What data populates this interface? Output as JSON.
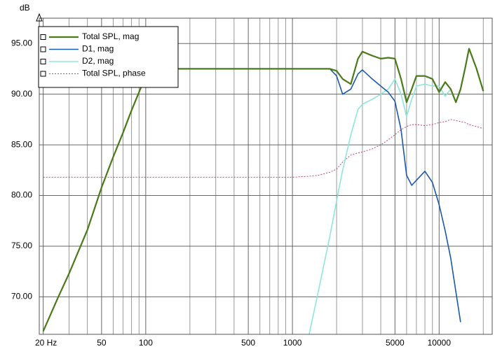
{
  "chart_data": {
    "type": "line",
    "y_label": "dB",
    "x": [
      20,
      25,
      30,
      40,
      50,
      60,
      70,
      80,
      90,
      100,
      150,
      200,
      500,
      1000,
      1300,
      1500,
      1800,
      2000,
      2200,
      2500,
      2800,
      3000,
      3500,
      4000,
      4500,
      5000,
      5500,
      6000,
      6500,
      7000,
      8000,
      9000,
      10000,
      11000,
      12000,
      13000,
      14000,
      15000,
      16000,
      18000,
      20000
    ],
    "series": [
      {
        "name": "Total SPL, mag",
        "color": "#4a7a1a",
        "width": 2.2,
        "dashed": false,
        "values": [
          66.6,
          69.8,
          72.3,
          76.6,
          80.8,
          83.8,
          86.2,
          88.4,
          90.2,
          91.8,
          92.5,
          92.5,
          92.5,
          92.5,
          92.5,
          92.5,
          92.5,
          92.3,
          91.5,
          91.0,
          93.5,
          94.2,
          93.8,
          93.5,
          93.6,
          93.5,
          91.5,
          89.2,
          90.5,
          91.8,
          91.8,
          91.5,
          90.2,
          91.2,
          90.5,
          89.2,
          90.5,
          92.5,
          94.5,
          92.5,
          90.3
        ]
      },
      {
        "name": "D1, mag",
        "color": "#1a5aa8",
        "width": 1.6,
        "dashed": false,
        "values": [
          66.6,
          69.8,
          72.3,
          76.6,
          80.8,
          83.8,
          86.2,
          88.4,
          90.2,
          91.8,
          92.5,
          92.5,
          92.5,
          92.5,
          92.5,
          92.5,
          92.5,
          91.8,
          90.0,
          90.5,
          92.0,
          92.4,
          91.5,
          90.8,
          90.2,
          89.3,
          86.5,
          82.0,
          81.0,
          81.5,
          82.4,
          81.3,
          79.1,
          76.5,
          73.8,
          70.5,
          67.5,
          null,
          null,
          null,
          null
        ]
      },
      {
        "name": "D2, mag",
        "color": "#8ee6d8",
        "width": 1.6,
        "dashed": false,
        "values": [
          null,
          null,
          null,
          null,
          null,
          null,
          null,
          null,
          null,
          null,
          null,
          null,
          null,
          null,
          66.3,
          70.5,
          76.0,
          79.5,
          82.5,
          86.0,
          88.5,
          89.0,
          89.5,
          90.0,
          90.5,
          91.5,
          90.0,
          87.8,
          89.5,
          90.8,
          91.0,
          90.8,
          90.8,
          89.8,
          90.5,
          89.2,
          90.5,
          92.5,
          94.5,
          92.5,
          90.3
        ]
      },
      {
        "name": "Total SPL, phase",
        "color": "#c0407a",
        "width": 1,
        "dashed": true,
        "values": [
          81.8,
          81.8,
          81.8,
          81.8,
          81.8,
          81.8,
          81.8,
          81.8,
          81.8,
          81.8,
          81.8,
          81.8,
          81.8,
          81.8,
          81.9,
          82.0,
          82.3,
          82.6,
          83.3,
          84.0,
          84.2,
          84.3,
          84.6,
          85.0,
          85.5,
          86.0,
          86.5,
          86.8,
          87.0,
          87.0,
          86.9,
          87.0,
          87.2,
          87.3,
          87.5,
          87.4,
          87.3,
          87.2,
          87.0,
          86.8,
          86.6
        ]
      }
    ],
    "xlog": true,
    "xlim": [
      18.8,
      23000
    ],
    "xticks": [
      {
        "value": 20,
        "label": "20 Hz"
      },
      50,
      100,
      500,
      1000,
      5000,
      10000
    ],
    "xgrid_minor": [
      30,
      40,
      60,
      70,
      80,
      90,
      200,
      300,
      400,
      600,
      700,
      800,
      900,
      2000,
      3000,
      4000,
      6000,
      7000,
      8000,
      9000,
      20000
    ],
    "ylim": [
      66.3,
      97.5
    ],
    "yticks": [
      {
        "value": 70,
        "label": "70.00"
      },
      {
        "value": 75,
        "label": "75.00"
      },
      {
        "value": 80,
        "label": "80.00"
      },
      {
        "value": 85,
        "label": "85.00"
      },
      {
        "value": 90,
        "label": "90.00"
      },
      {
        "value": 95,
        "label": "95.00"
      }
    ],
    "grid": true,
    "legend": "top-left"
  }
}
